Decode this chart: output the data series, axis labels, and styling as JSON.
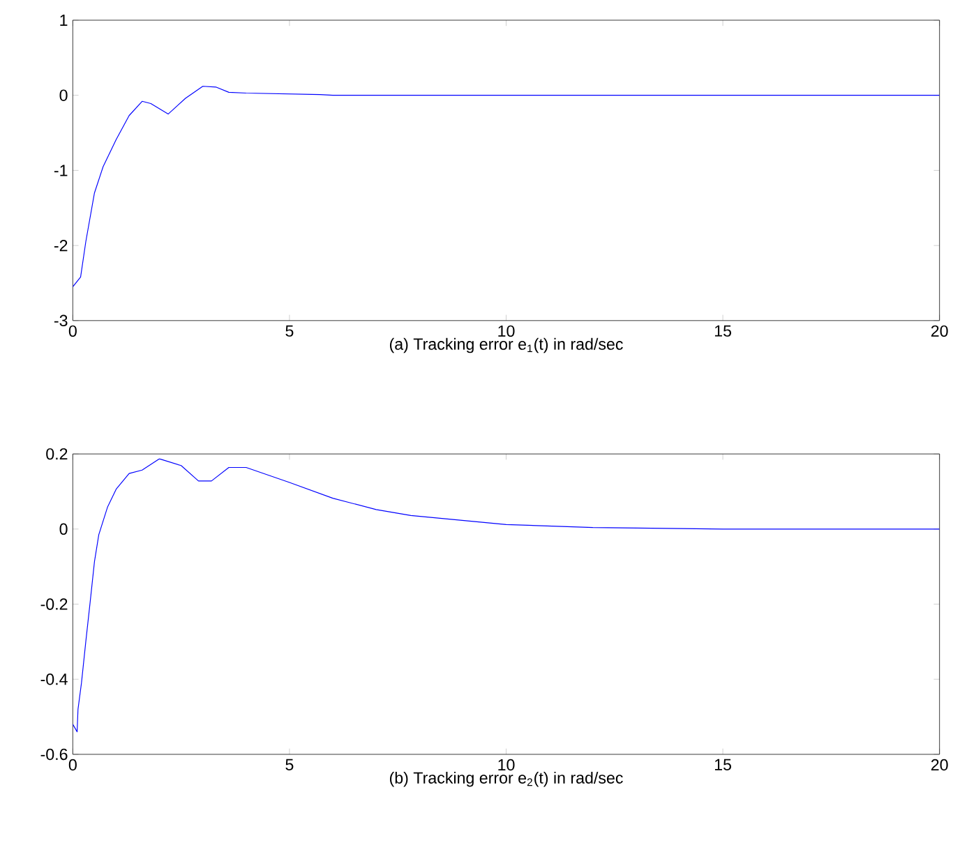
{
  "chart_data": [
    {
      "type": "line",
      "xlabel": "(a) Tracking error e$_{1}$(t) in rad/sec",
      "xlim": [
        0,
        20
      ],
      "ylim": [
        -3,
        1
      ],
      "xticks": [
        0,
        5,
        10,
        15,
        20
      ],
      "yticks": [
        -3,
        -2,
        -1,
        0,
        1
      ],
      "series": [
        {
          "color": "#0000ff",
          "x": [
            0,
            0.18,
            0.3,
            0.5,
            0.7,
            1.0,
            1.3,
            1.6,
            1.8,
            2.2,
            2.6,
            3.0,
            3.3,
            3.6,
            4.0,
            5.7,
            6.0,
            10,
            15,
            20
          ],
          "values": [
            -2.55,
            -2.42,
            -1.95,
            -1.3,
            -0.95,
            -0.59,
            -0.27,
            -0.08,
            -0.11,
            -0.25,
            -0.04,
            0.12,
            0.11,
            0.04,
            0.03,
            0.01,
            0,
            0,
            0,
            0
          ]
        }
      ]
    },
    {
      "type": "line",
      "xlabel": "(b) Tracking error e$_{2}$(t) in rad/sec",
      "xlim": [
        0,
        20
      ],
      "ylim": [
        -0.6,
        0.2
      ],
      "xticks": [
        0,
        5,
        10,
        15,
        20
      ],
      "yticks": [
        -0.6,
        -0.4,
        -0.2,
        0,
        0.2
      ],
      "series": [
        {
          "color": "#0000ff",
          "x": [
            0,
            0.1,
            0.12,
            0.2,
            0.3,
            0.4,
            0.5,
            0.6,
            0.8,
            1.0,
            1.3,
            1.6,
            2.0,
            2.5,
            2.9,
            3.2,
            3.6,
            4.0,
            5,
            6,
            7,
            7.8,
            10,
            12,
            15,
            20
          ],
          "values": [
            -0.52,
            -0.54,
            -0.48,
            -0.41,
            -0.3,
            -0.195,
            -0.087,
            -0.015,
            0.058,
            0.106,
            0.148,
            0.157,
            0.187,
            0.169,
            0.128,
            0.128,
            0.164,
            0.164,
            0.124,
            0.082,
            0.052,
            0.036,
            0.012,
            0.004,
            0,
            0
          ]
        }
      ]
    }
  ]
}
